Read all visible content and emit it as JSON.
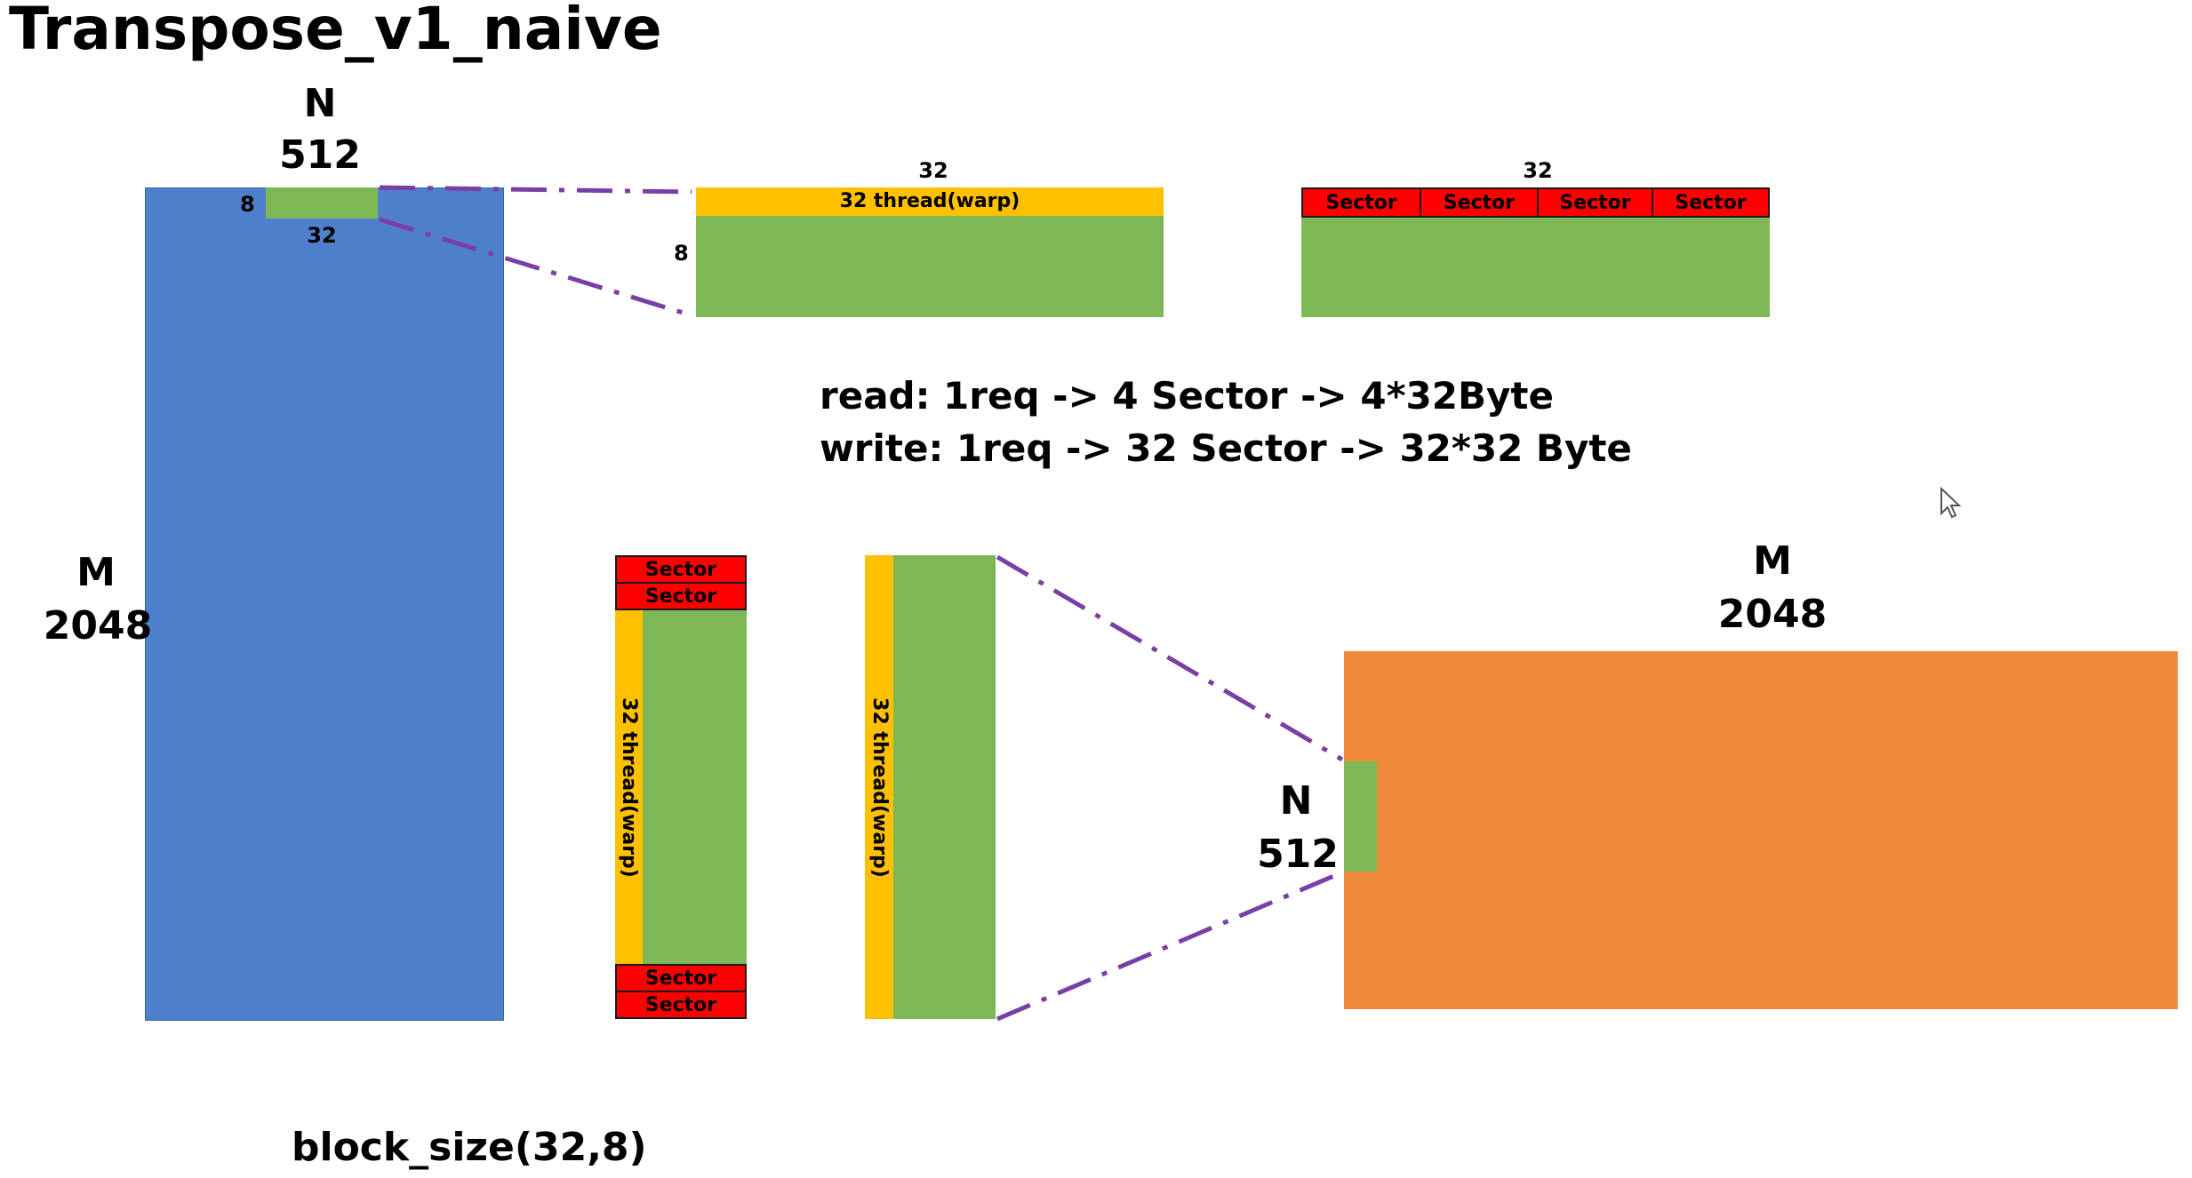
{
  "title": "Transpose_v1_naive",
  "input_matrix": {
    "cols_name": "N",
    "cols_value": "512",
    "rows_name": "M",
    "rows_value": "2048",
    "tile_height": "8",
    "tile_width": "32",
    "color": "#4e7fcb"
  },
  "read_tile": {
    "width_label": "32",
    "height_label": "8",
    "warp_label": "32 thread(warp)"
  },
  "read_sectors": {
    "width_label": "32",
    "sectors": [
      "Sector",
      "Sector",
      "Sector",
      "Sector"
    ]
  },
  "info": {
    "read": "read: 1req -> 4 Sector -> 4*32Byte",
    "write": "write: 1req -> 32 Sector -> 32*32 Byte"
  },
  "write_column_sectors": {
    "top": [
      "Sector",
      "Sector"
    ],
    "bottom": [
      "Sector",
      "Sector"
    ],
    "warp_label": "32 thread(warp)"
  },
  "write_column": {
    "warp_label": "32 thread(warp)"
  },
  "output_matrix": {
    "cols_name": "M",
    "cols_value": "2048",
    "rows_name": "N",
    "rows_value": "512",
    "color": "#ee8a39"
  },
  "footer": {
    "block_size": "block_size(32,8)"
  },
  "colors": {
    "tile_green": "#7db756",
    "warp_yellow": "#ffc000",
    "sector_red": "#ff0000",
    "dash_purple": "#7a3fa6"
  }
}
